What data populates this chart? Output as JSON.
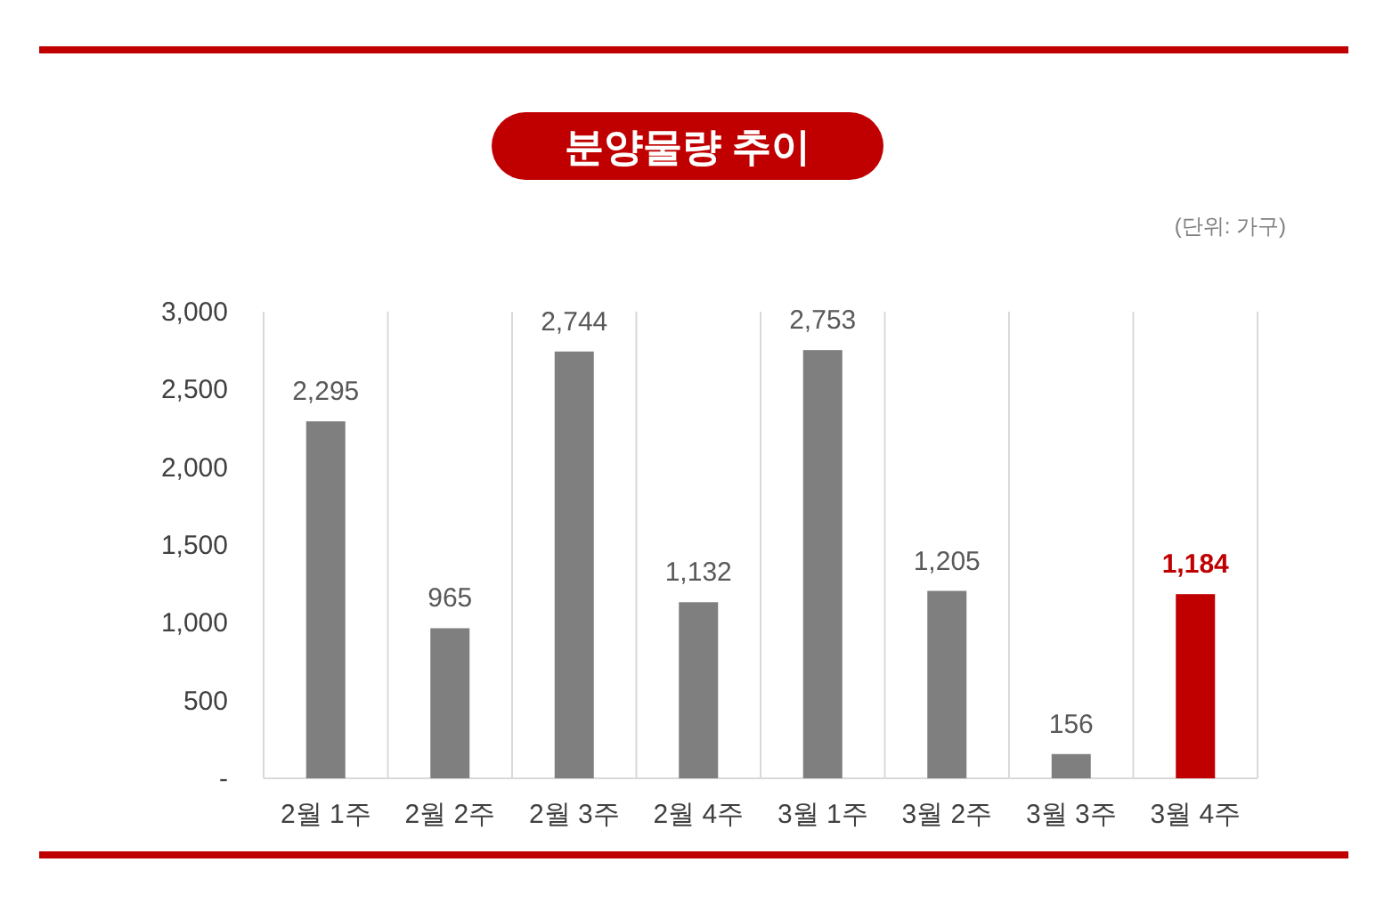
{
  "chart_data": {
    "type": "bar",
    "title": "분양물량 추이",
    "annotations": [
      "(단위: 가구)"
    ],
    "categories": [
      "2월 1주",
      "2월 2주",
      "2월 3주",
      "2월 4주",
      "3월 1주",
      "3월 2주",
      "3월 3주",
      "3월 4주"
    ],
    "values": [
      2295,
      965,
      2744,
      1132,
      2753,
      1205,
      156,
      1184
    ],
    "colors": [
      "#7f7f7f",
      "#7f7f7f",
      "#7f7f7f",
      "#7f7f7f",
      "#7f7f7f",
      "#7f7f7f",
      "#7f7f7f",
      "#c00000"
    ],
    "value_labels": [
      "2,295",
      "965",
      "2,744",
      "1,132",
      "2,753",
      "1,205",
      "156",
      "1,184"
    ],
    "ylim": [
      0,
      3000
    ],
    "yticks": [
      {
        "value": 0,
        "label": "-"
      },
      {
        "value": 500,
        "label": "500"
      },
      {
        "value": 1000,
        "label": "1,000"
      },
      {
        "value": 1500,
        "label": "1,500"
      },
      {
        "value": 2000,
        "label": "2,000"
      },
      {
        "value": 2500,
        "label": "2,500"
      },
      {
        "value": 3000,
        "label": "3,000"
      }
    ],
    "grid": "x"
  }
}
